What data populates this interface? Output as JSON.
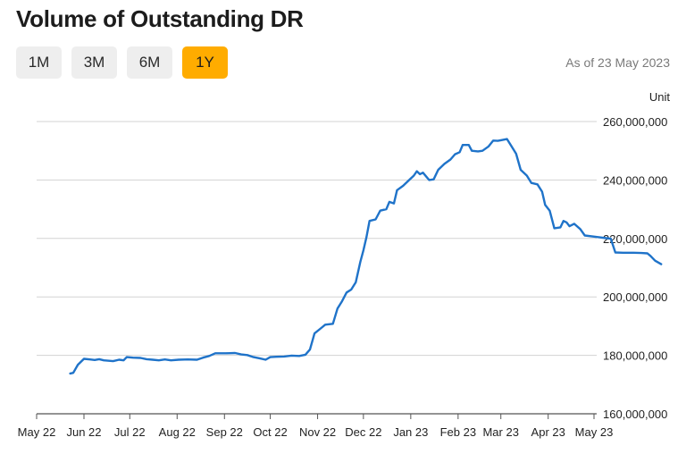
{
  "header": {
    "title": "Volume of Outstanding DR",
    "as_of": "As of 23 May 2023",
    "unit_label": "Unit"
  },
  "range_buttons": [
    {
      "label": "1M",
      "active": false
    },
    {
      "label": "3M",
      "active": false
    },
    {
      "label": "6M",
      "active": false
    },
    {
      "label": "1Y",
      "active": true
    }
  ],
  "colors": {
    "accent": "#ffac00",
    "line": "#1f73c9",
    "grid": "#d3d3d3"
  },
  "chart_data": {
    "type": "line",
    "xlabel": "",
    "ylabel": "",
    "ylim": [
      160000000,
      260000000
    ],
    "y_ticks": [
      160000000,
      180000000,
      200000000,
      220000000,
      240000000,
      260000000
    ],
    "y_tick_labels": [
      "160,000,000",
      "180,000,000",
      "200,000,000",
      "220,000,000",
      "240,000,000",
      "260,000,000"
    ],
    "x_tick_labels": [
      "May 22",
      "Jun 22",
      "Jul 22",
      "Aug 22",
      "Sep 22",
      "Oct 22",
      "Nov 22",
      "Dec 22",
      "Jan 23",
      "Feb 23",
      "Mar 23",
      "Apr 23",
      "May 23"
    ],
    "x_ticks": [
      "2022-05",
      "2022-06",
      "2022-07",
      "2022-08",
      "2022-09",
      "2022-10",
      "2022-11",
      "2022-12",
      "2023-01",
      "2023-02",
      "2023-03",
      "2023-04",
      "2023-05"
    ],
    "grid": true,
    "y_axis_side": "right",
    "series": [
      {
        "points": [
          [
            "2022-05-23",
            173800000
          ],
          [
            "2022-05-25",
            174000000
          ],
          [
            "2022-05-28",
            176800000
          ],
          [
            "2022-06-01",
            178800000
          ],
          [
            "2022-06-05",
            178600000
          ],
          [
            "2022-06-08",
            178400000
          ],
          [
            "2022-06-11",
            178700000
          ],
          [
            "2022-06-14",
            178300000
          ],
          [
            "2022-06-20",
            178000000
          ],
          [
            "2022-06-24",
            178500000
          ],
          [
            "2022-06-27",
            178300000
          ],
          [
            "2022-06-29",
            179400000
          ],
          [
            "2022-07-03",
            179200000
          ],
          [
            "2022-07-08",
            179100000
          ],
          [
            "2022-07-12",
            178700000
          ],
          [
            "2022-07-16",
            178500000
          ],
          [
            "2022-07-20",
            178300000
          ],
          [
            "2022-07-24",
            178600000
          ],
          [
            "2022-07-28",
            178300000
          ],
          [
            "2022-08-02",
            178500000
          ],
          [
            "2022-08-08",
            178600000
          ],
          [
            "2022-08-14",
            178500000
          ],
          [
            "2022-08-18",
            179200000
          ],
          [
            "2022-08-22",
            179800000
          ],
          [
            "2022-08-26",
            180700000
          ],
          [
            "2022-09-02",
            180700000
          ],
          [
            "2022-09-08",
            180800000
          ],
          [
            "2022-09-12",
            180300000
          ],
          [
            "2022-09-16",
            180100000
          ],
          [
            "2022-09-20",
            179400000
          ],
          [
            "2022-09-24",
            179000000
          ],
          [
            "2022-09-28",
            178500000
          ],
          [
            "2022-10-01",
            179400000
          ],
          [
            "2022-10-05",
            179500000
          ],
          [
            "2022-10-10",
            179600000
          ],
          [
            "2022-10-15",
            179900000
          ],
          [
            "2022-10-20",
            179800000
          ],
          [
            "2022-10-24",
            180200000
          ],
          [
            "2022-10-27",
            182000000
          ],
          [
            "2022-10-30",
            187500000
          ],
          [
            "2022-11-03",
            189200000
          ],
          [
            "2022-11-06",
            190500000
          ],
          [
            "2022-11-11",
            190800000
          ],
          [
            "2022-11-14",
            196000000
          ],
          [
            "2022-11-17",
            198500000
          ],
          [
            "2022-11-20",
            201500000
          ],
          [
            "2022-11-23",
            202500000
          ],
          [
            "2022-11-26",
            205000000
          ],
          [
            "2022-11-29",
            212000000
          ],
          [
            "2022-12-01",
            216000000
          ],
          [
            "2022-12-03",
            220500000
          ],
          [
            "2022-12-05",
            226000000
          ],
          [
            "2022-12-09",
            226500000
          ],
          [
            "2022-12-12",
            229500000
          ],
          [
            "2022-12-16",
            230000000
          ],
          [
            "2022-12-18",
            232500000
          ],
          [
            "2022-12-21",
            232000000
          ],
          [
            "2022-12-23",
            236500000
          ],
          [
            "2022-12-27",
            238000000
          ],
          [
            "2022-12-31",
            240000000
          ],
          [
            "2023-01-03",
            241500000
          ],
          [
            "2023-01-05",
            243000000
          ],
          [
            "2023-01-07",
            242000000
          ],
          [
            "2023-01-09",
            242500000
          ],
          [
            "2023-01-13",
            240000000
          ],
          [
            "2023-01-16",
            240200000
          ],
          [
            "2023-01-19",
            243500000
          ],
          [
            "2023-01-23",
            245500000
          ],
          [
            "2023-01-27",
            247000000
          ],
          [
            "2023-01-30",
            248800000
          ],
          [
            "2023-02-02",
            249500000
          ],
          [
            "2023-02-04",
            252000000
          ],
          [
            "2023-02-08",
            252000000
          ],
          [
            "2023-02-10",
            250000000
          ],
          [
            "2023-02-14",
            249800000
          ],
          [
            "2023-02-17",
            250000000
          ],
          [
            "2023-02-21",
            251500000
          ],
          [
            "2023-02-24",
            253500000
          ],
          [
            "2023-02-27",
            253400000
          ],
          [
            "2023-03-01",
            253600000
          ],
          [
            "2023-03-05",
            254000000
          ],
          [
            "2023-03-08",
            251500000
          ],
          [
            "2023-03-11",
            249000000
          ],
          [
            "2023-03-14",
            243500000
          ],
          [
            "2023-03-18",
            241500000
          ],
          [
            "2023-03-21",
            239000000
          ],
          [
            "2023-03-25",
            238500000
          ],
          [
            "2023-03-28",
            236000000
          ],
          [
            "2023-03-30",
            231500000
          ],
          [
            "2023-04-02",
            229500000
          ],
          [
            "2023-04-05",
            223500000
          ],
          [
            "2023-04-09",
            223800000
          ],
          [
            "2023-04-11",
            226000000
          ],
          [
            "2023-04-13",
            225500000
          ],
          [
            "2023-04-15",
            224200000
          ],
          [
            "2023-04-18",
            225000000
          ],
          [
            "2023-04-22",
            223200000
          ],
          [
            "2023-04-25",
            221000000
          ],
          [
            "2023-05-03",
            220500000
          ],
          [
            "2023-05-09",
            220100000
          ],
          [
            "2023-05-12",
            219900000
          ],
          [
            "2023-05-15",
            215200000
          ],
          [
            "2023-05-20",
            215100000
          ],
          [
            "2023-05-27",
            215100000
          ],
          [
            "2023-06-01",
            215000000
          ],
          [
            "2023-06-05",
            214900000
          ],
          [
            "2023-06-07",
            214000000
          ],
          [
            "2023-06-10",
            212400000
          ],
          [
            "2023-06-14",
            211200000
          ]
        ]
      }
    ]
  }
}
